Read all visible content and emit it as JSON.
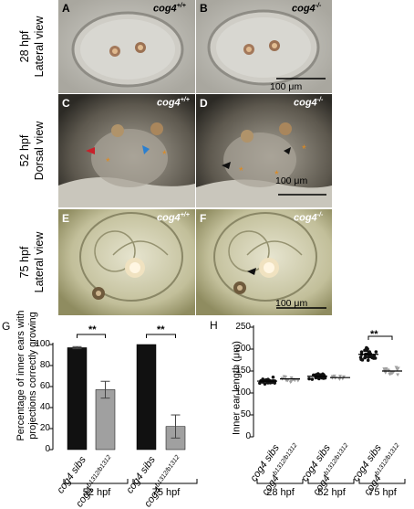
{
  "rows": [
    {
      "time": "28 hpf",
      "view": "Lateral view"
    },
    {
      "time": "52 hpf",
      "view": "Dorsal view"
    },
    {
      "time": "75 hpf",
      "view": "Lateral view"
    }
  ],
  "panels": [
    {
      "letter": "A",
      "genotype": "cog4",
      "sup": "+/+"
    },
    {
      "letter": "B",
      "genotype": "cog4",
      "sup": "-/-"
    },
    {
      "letter": "C",
      "genotype": "cog4",
      "sup": "+/+"
    },
    {
      "letter": "D",
      "genotype": "cog4",
      "sup": "-/-"
    },
    {
      "letter": "E",
      "genotype": "cog4",
      "sup": "+/+"
    },
    {
      "letter": "F",
      "genotype": "cog4",
      "sup": "-/-"
    }
  ],
  "scale_bars": [
    "100 μm",
    "100 μm",
    "100 μm"
  ],
  "arrow_colors": {
    "red": "#c8202a",
    "blue": "#2a7fd0",
    "orange": "#e08a1e",
    "black": "#111111"
  },
  "figG": {
    "letter": "G",
    "ylabel_line1": "Percentage of inner ears with",
    "ylabel_line2": "projections correctly growing",
    "yticks": [
      "100",
      "80",
      "60",
      "40",
      "20",
      "0"
    ],
    "sig": [
      "**",
      "**"
    ],
    "groups": [
      "52 hpf",
      "75 hpf"
    ],
    "xlabels": [
      {
        "main": "cog4 sibs",
        "sup": ""
      },
      {
        "main": "cog4",
        "sup": "b1312/b1312"
      },
      {
        "main": "cog4 sibs",
        "sup": ""
      },
      {
        "main": "cog4",
        "sup": "b1312/b1312"
      }
    ]
  },
  "figH": {
    "letter": "H",
    "ylabel": "Inner ear length (μm)",
    "yticks": [
      "250",
      "200",
      "150",
      "100",
      "50",
      "0"
    ],
    "sig": "**",
    "groups": [
      "28 hpf",
      "52 hpf",
      "75 hpf"
    ],
    "xlabels": [
      {
        "main": "cog4 sibs",
        "sup": ""
      },
      {
        "main": "cog4",
        "sup": "b1312/b1312"
      },
      {
        "main": "cog4 sibs",
        "sup": ""
      },
      {
        "main": "cog4",
        "sup": "b1312/b1312"
      },
      {
        "main": "cog4 sibs",
        "sup": ""
      },
      {
        "main": "cog4",
        "sup": "b1312/b1312"
      }
    ]
  },
  "chart_data": [
    {
      "type": "bar",
      "ylabel": "Percentage of inner ears with projections correctly growing",
      "ylim": [
        0,
        100
      ],
      "categories": [
        "cog4 sibs",
        "cog4 b1312/b1312",
        "cog4 sibs",
        "cog4 b1312/b1312"
      ],
      "groups": [
        "52 hpf",
        "52 hpf",
        "75 hpf",
        "75 hpf"
      ],
      "values": [
        97,
        57,
        100,
        22
      ],
      "errors": [
        1,
        8,
        0,
        11
      ],
      "colors": [
        "#111111",
        "#a0a0a0",
        "#111111",
        "#a0a0a0"
      ]
    },
    {
      "type": "scatter",
      "ylabel": "Inner ear length (μm)",
      "ylim": [
        0,
        250
      ],
      "categories": [
        "cog4 sibs",
        "cog4 b1312/b1312",
        "cog4 sibs",
        "cog4 b1312/b1312",
        "cog4 sibs",
        "cog4 b1312/b1312"
      ],
      "groups": [
        "28 hpf",
        "28 hpf",
        "52 hpf",
        "52 hpf",
        "75 hpf",
        "75 hpf"
      ],
      "means": [
        127,
        132,
        138,
        135,
        188,
        150
      ],
      "spreads": [
        10,
        8,
        8,
        6,
        18,
        10
      ],
      "counts": [
        30,
        12,
        20,
        8,
        30,
        18
      ],
      "colors": [
        "#111111",
        "#a0a0a0",
        "#111111",
        "#a0a0a0",
        "#111111",
        "#a0a0a0"
      ]
    }
  ]
}
